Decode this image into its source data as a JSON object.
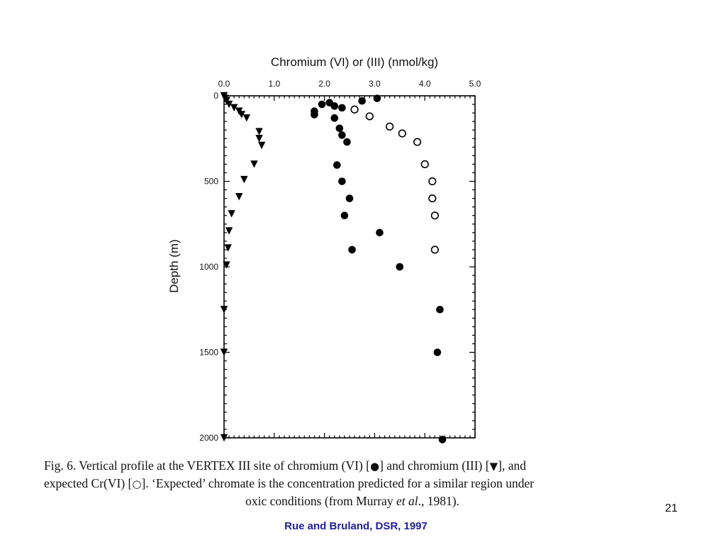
{
  "chart_data": {
    "type": "scatter",
    "xlabel": "Chromium (VI) or (III) (nmol/kg)",
    "ylabel": "Depth (m)",
    "xlim": [
      0,
      5
    ],
    "ylim": [
      0,
      2000
    ],
    "y_inverted": true,
    "x_axis_position": "top",
    "x_ticks": [
      "0.0",
      "1.0",
      "2.0",
      "3.0",
      "4.0",
      "5.0"
    ],
    "y_ticks": [
      "0",
      "500",
      "1000",
      "1500",
      "2000"
    ],
    "grid": false,
    "legend": "none",
    "series": [
      {
        "marker": "filled-circle",
        "points": [
          [
            3.05,
            15
          ],
          [
            2.75,
            30
          ],
          [
            2.1,
            40
          ],
          [
            1.95,
            50
          ],
          [
            2.2,
            60
          ],
          [
            2.35,
            70
          ],
          [
            1.8,
            90
          ],
          [
            1.8,
            110
          ],
          [
            2.2,
            130
          ],
          [
            2.3,
            190
          ],
          [
            2.35,
            230
          ],
          [
            2.45,
            270
          ],
          [
            2.25,
            405
          ],
          [
            2.35,
            500
          ],
          [
            2.5,
            600
          ],
          [
            2.4,
            700
          ],
          [
            3.1,
            800
          ],
          [
            2.55,
            900
          ],
          [
            3.5,
            1000
          ],
          [
            4.3,
            1250
          ],
          [
            4.25,
            1500
          ],
          [
            4.35,
            2010
          ]
        ]
      },
      {
        "marker": "filled-triangle-down",
        "points": [
          [
            0.0,
            0
          ],
          [
            0.02,
            15
          ],
          [
            0.05,
            30
          ],
          [
            0.1,
            50
          ],
          [
            0.2,
            70
          ],
          [
            0.3,
            90
          ],
          [
            0.35,
            110
          ],
          [
            0.45,
            130
          ],
          [
            0.7,
            210
          ],
          [
            0.7,
            250
          ],
          [
            0.75,
            290
          ],
          [
            0.6,
            400
          ],
          [
            0.4,
            490
          ],
          [
            0.3,
            590
          ],
          [
            0.15,
            690
          ],
          [
            0.1,
            790
          ],
          [
            0.08,
            890
          ],
          [
            0.05,
            990
          ],
          [
            0.0,
            1250
          ],
          [
            0.0,
            1500
          ],
          [
            0.0,
            2000
          ]
        ]
      },
      {
        "marker": "open-circle",
        "points": [
          [
            2.6,
            80
          ],
          [
            2.9,
            120
          ],
          [
            3.3,
            180
          ],
          [
            3.55,
            220
          ],
          [
            3.85,
            270
          ],
          [
            4.0,
            400
          ],
          [
            4.15,
            500
          ],
          [
            4.15,
            600
          ],
          [
            4.2,
            700
          ],
          [
            4.2,
            900
          ]
        ]
      }
    ]
  },
  "caption": {
    "line1_part1": "Fig. 6.   Vertical profile at the VERTEX III site of chromium (VI) [",
    "sym_circle": "●",
    "line1_part2": "] and chromium (III) [",
    "sym_triangle": "▼",
    "line1_part3": "], and",
    "line2_part1": "expected Cr(VI) [",
    "sym_open": "○",
    "line2_part2": "]. ‘Expected’ chromate is the concentration predicted for a similar region under",
    "line3_part1": "oxic conditions (from Murray ",
    "line3_italic": "et al",
    "line3_part2": "., 1981)."
  },
  "slide_number": "21",
  "citation": "Rue and Bruland, DSR, 1997",
  "colors": {
    "citation": "#1f1f99",
    "marks": "#000000"
  }
}
